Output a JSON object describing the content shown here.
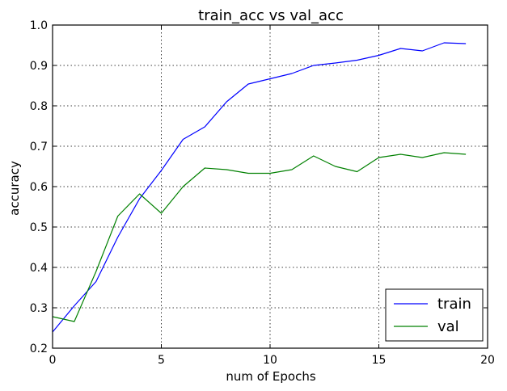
{
  "chart_data": {
    "type": "line",
    "title": "train_acc vs val_acc",
    "xlabel": "num of Epochs",
    "ylabel": "accuracy",
    "xlim": [
      0,
      20
    ],
    "ylim": [
      0.2,
      1.0
    ],
    "xticks": [
      "0",
      "5",
      "10",
      "15",
      "20"
    ],
    "yticks": [
      "0.2",
      "0.3",
      "0.4",
      "0.5",
      "0.6",
      "0.7",
      "0.8",
      "0.9",
      "1.0"
    ],
    "grid": true,
    "legend_position": "lower-right",
    "x": [
      0,
      1,
      2,
      3,
      4,
      5,
      6,
      7,
      8,
      9,
      10,
      11,
      12,
      13,
      14,
      15,
      16,
      17,
      18,
      19
    ],
    "series": [
      {
        "name": "train",
        "color": "#0000ff",
        "values": [
          0.24,
          0.305,
          0.365,
          0.475,
          0.57,
          0.64,
          0.717,
          0.748,
          0.81,
          0.854,
          0.867,
          0.88,
          0.9,
          0.906,
          0.913,
          0.925,
          0.942,
          0.936,
          0.956,
          0.954
        ]
      },
      {
        "name": "val",
        "color": "#008000",
        "values": [
          0.278,
          0.266,
          0.39,
          0.527,
          0.582,
          0.534,
          0.6,
          0.646,
          0.642,
          0.633,
          0.633,
          0.642,
          0.676,
          0.65,
          0.637,
          0.672,
          0.68,
          0.672,
          0.684,
          0.68
        ]
      }
    ]
  }
}
